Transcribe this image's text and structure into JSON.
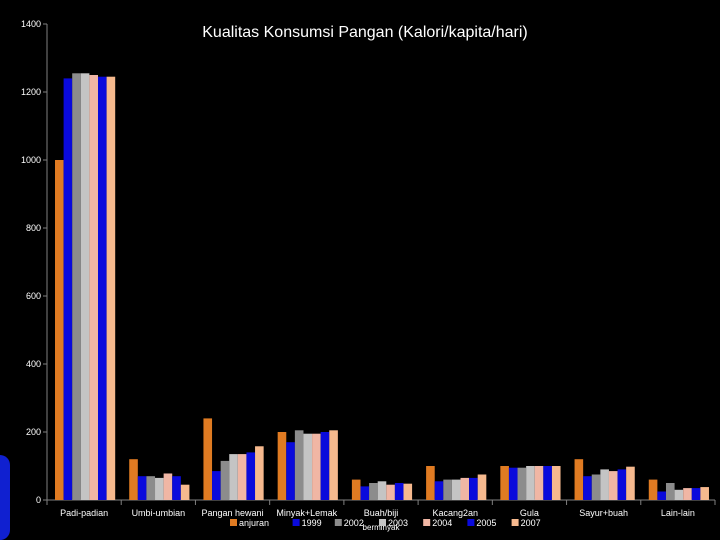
{
  "chart_data": {
    "type": "bar",
    "title": "Kualitas  Konsumsi Pangan (Kalori/kapita/hari)",
    "xlabel": "",
    "ylabel": "",
    "ylim": [
      0,
      1400
    ],
    "yticks": [
      "0",
      "200",
      "400",
      "600",
      "800",
      "1000",
      "1200",
      "1400"
    ],
    "grid": false,
    "legend_position": "bottom",
    "categories": [
      "Padi-padian",
      "Umbi-umbian",
      "Pangan hewani",
      "Minyak+Lemak",
      "Buah/biji berminyak",
      "Kacang2an",
      "Gula",
      "Sayur+buah",
      "Lain-lain"
    ],
    "category_labels": [
      "Padi-padian",
      "Umbi-umbian",
      "Pangan hewani",
      "Minyak+Lemak",
      "Buah/biji",
      "Kacang2an",
      "Gula",
      "Sayur+buah",
      "Lain-lain"
    ],
    "category_sublabels": [
      "",
      "",
      "",
      "",
      "berminyak",
      "",
      "",
      "",
      ""
    ],
    "series": [
      {
        "name": "anjuran",
        "color": "#E07B22",
        "values": [
          1000,
          120,
          240,
          200,
          60,
          100,
          100,
          120,
          60
        ]
      },
      {
        "name": "1999",
        "color": "#0A0ADC",
        "values": [
          1240,
          70,
          85,
          170,
          40,
          55,
          95,
          70,
          25
        ]
      },
      {
        "name": "2002",
        "color": "#8C8C8C",
        "values": [
          1255,
          70,
          115,
          205,
          50,
          60,
          95,
          75,
          50
        ]
      },
      {
        "name": "2003",
        "color": "#C4C4C4",
        "values": [
          1255,
          65,
          135,
          195,
          55,
          60,
          100,
          90,
          30
        ]
      },
      {
        "name": "2004",
        "color": "#F0B6A4",
        "values": [
          1250,
          78,
          135,
          195,
          45,
          65,
          100,
          85,
          35
        ]
      },
      {
        "name": "2005",
        "color": "#0A0ADC",
        "values": [
          1245,
          70,
          140,
          200,
          50,
          65,
          100,
          90,
          35
        ]
      },
      {
        "name": "2007",
        "color": "#F6B98E",
        "values": [
          1245,
          45,
          158,
          205,
          48,
          75,
          100,
          98,
          38
        ]
      }
    ]
  },
  "colors": {
    "background": "#000000",
    "axis": "#808080",
    "text": "#FFFFFF"
  }
}
